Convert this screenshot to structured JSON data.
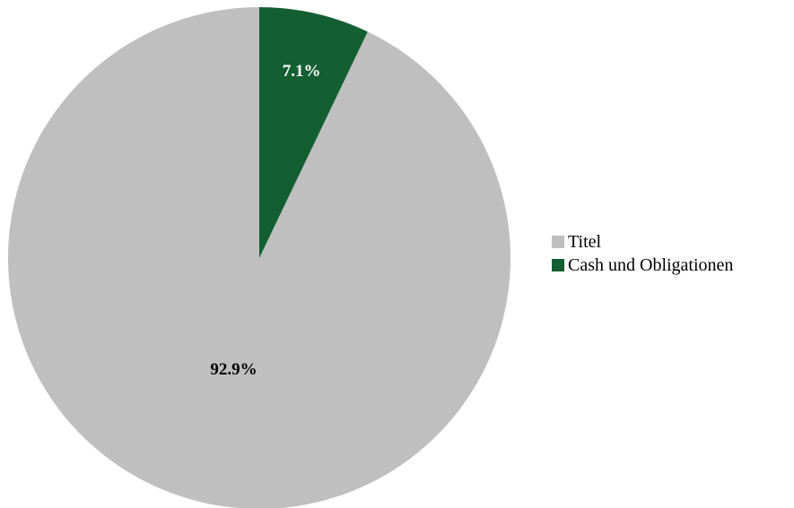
{
  "chart_data": {
    "type": "pie",
    "slices": [
      {
        "label": "Titel",
        "value": 92.9,
        "display": "92.9%",
        "color": "#bfbfbf",
        "label_color": "#000000"
      },
      {
        "label": "Cash und Obligationen",
        "value": 7.1,
        "display": "7.1%",
        "color": "#135f32",
        "label_color": "#ffffff"
      }
    ],
    "start": "12 o'clock",
    "direction": "counterclockwise",
    "legend_position": "right"
  }
}
